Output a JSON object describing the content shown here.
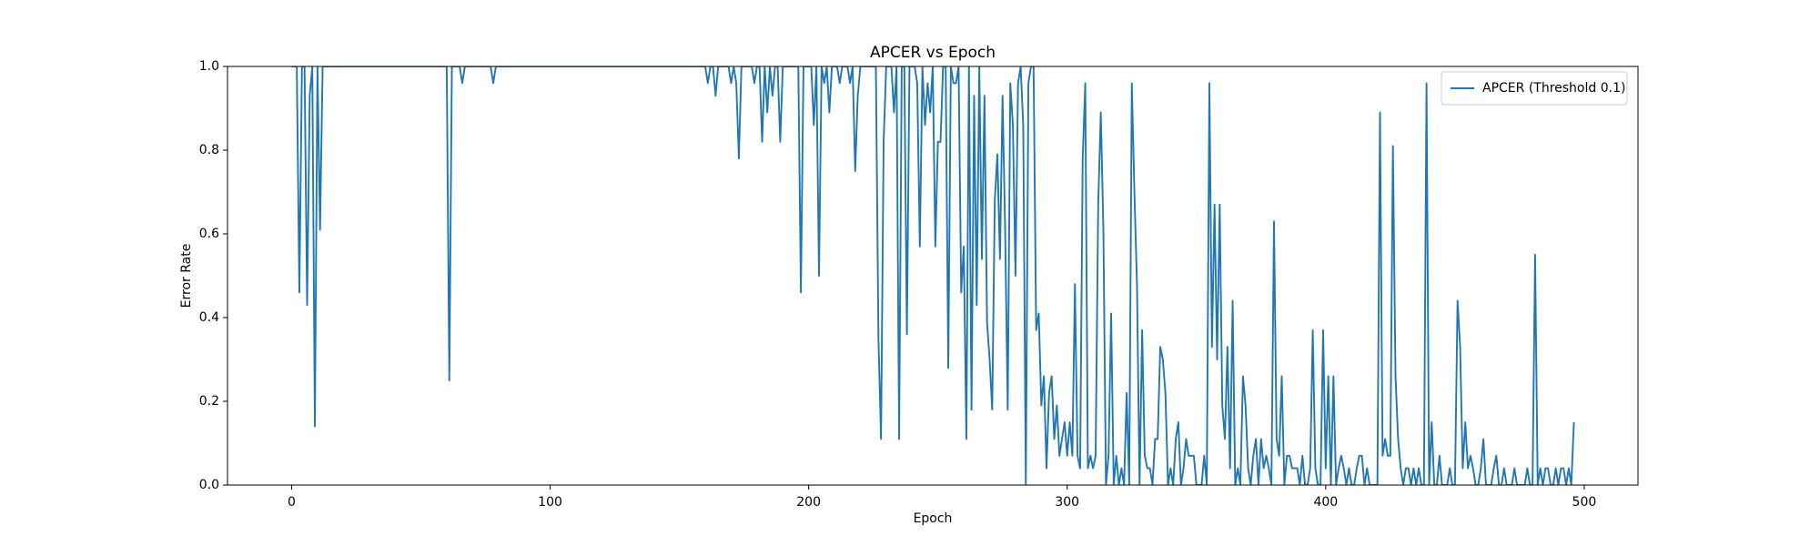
{
  "chart_data": {
    "type": "line",
    "title": "APCER vs Epoch",
    "xlabel": "Epoch",
    "ylabel": "Error Rate",
    "x": [
      0,
      2,
      3,
      4,
      5,
      6,
      7,
      8,
      9,
      10,
      11,
      12,
      60,
      61,
      62,
      65,
      66,
      67,
      77,
      78,
      79,
      160,
      161,
      162,
      163,
      164,
      165,
      169,
      170,
      171,
      172,
      173,
      174,
      178,
      179,
      180,
      181,
      182,
      183,
      184,
      185,
      186,
      187,
      188,
      189,
      190,
      196,
      197,
      198,
      201,
      202,
      203,
      204,
      205,
      206,
      207,
      208,
      209,
      211,
      212,
      213,
      215,
      216,
      217,
      218,
      219,
      220,
      226,
      227,
      228,
      229,
      230,
      231,
      232,
      233,
      234,
      235,
      236,
      237,
      238,
      239,
      240,
      241,
      242,
      243,
      244,
      245,
      246,
      247,
      248,
      249,
      250,
      251,
      252,
      253,
      254,
      255,
      256,
      257,
      258,
      259,
      260,
      261,
      262,
      263,
      264,
      265,
      266,
      267,
      268,
      269,
      270,
      271,
      272,
      273,
      274,
      275,
      276,
      277,
      278,
      279,
      280,
      281,
      282,
      283,
      284,
      285,
      286,
      287,
      288,
      289,
      290,
      291,
      292,
      293,
      294,
      295,
      296,
      297,
      298,
      299,
      300,
      301,
      302,
      303,
      304,
      305,
      306,
      307,
      308,
      309,
      310,
      311,
      312,
      313,
      314,
      315,
      316,
      317,
      318,
      319,
      320,
      321,
      322,
      323,
      324,
      325,
      326,
      327,
      328,
      329,
      330,
      331,
      332,
      333,
      334,
      335,
      336,
      337,
      338,
      339,
      340,
      341,
      342,
      343,
      344,
      345,
      346,
      347,
      348,
      349,
      350,
      351,
      352,
      353,
      354,
      355,
      356,
      357,
      358,
      359,
      360,
      361,
      362,
      363,
      364,
      365,
      366,
      367,
      368,
      369,
      370,
      371,
      372,
      373,
      374,
      375,
      376,
      377,
      378,
      379,
      380,
      381,
      382,
      383,
      384,
      385,
      386,
      387,
      388,
      389,
      390,
      391,
      392,
      393,
      394,
      395,
      396,
      397,
      398,
      399,
      400,
      401,
      402,
      403,
      404,
      405,
      406,
      407,
      408,
      409,
      410,
      411,
      412,
      413,
      414,
      415,
      416,
      417,
      418,
      419,
      420,
      421,
      422,
      423,
      424,
      425,
      426,
      427,
      428,
      429,
      430,
      431,
      432,
      433,
      434,
      435,
      436,
      437,
      438,
      439,
      440,
      441,
      442,
      443,
      444,
      445,
      446,
      447,
      448,
      449,
      450,
      451,
      452,
      453,
      454,
      455,
      456,
      457,
      458,
      459,
      460,
      461,
      462,
      463,
      464,
      465,
      466,
      467,
      468,
      469,
      470,
      471,
      472,
      473,
      474,
      475,
      476,
      477,
      478,
      479,
      480,
      481,
      482,
      483,
      484,
      485,
      486,
      487,
      488,
      489,
      490,
      491,
      492,
      493,
      494,
      495,
      496
    ],
    "series": [
      {
        "name": "APCER (Threshold 0.1)",
        "color": "#1f77b4",
        "values": [
          1,
          1,
          0.46,
          1,
          1,
          0.43,
          0.93,
          1,
          0.14,
          1,
          0.61,
          1,
          1,
          0.25,
          1,
          1,
          0.96,
          1,
          1,
          0.96,
          1,
          1,
          0.96,
          1,
          1,
          0.93,
          1,
          1,
          0.96,
          1,
          0.96,
          0.78,
          1,
          1,
          0.96,
          1,
          1,
          0.82,
          1,
          0.89,
          1,
          0.93,
          1,
          1,
          0.82,
          1,
          1,
          0.46,
          1,
          1,
          0.86,
          1,
          0.5,
          1,
          0.96,
          1,
          0.89,
          1,
          1,
          0.96,
          1,
          1,
          0.96,
          1,
          0.75,
          0.93,
          1,
          1,
          0.35,
          0.11,
          0.82,
          1,
          1,
          1,
          0.89,
          1,
          0.11,
          1,
          1,
          0.36,
          1,
          1,
          1,
          0.96,
          0.57,
          1,
          0.86,
          0.96,
          0.89,
          1,
          0.57,
          0.82,
          0.82,
          1,
          1,
          0.28,
          1,
          0.96,
          0.96,
          1,
          0.46,
          0.57,
          0.11,
          1,
          0.18,
          0.93,
          0.43,
          1,
          0.54,
          0.93,
          0.39,
          0.3,
          0.18,
          0.68,
          0.79,
          0.54,
          0.93,
          0.61,
          0.18,
          0.96,
          0.86,
          0.5,
          0.96,
          1,
          0.86,
          0,
          0.96,
          1,
          1,
          0.37,
          0.41,
          0.19,
          0.26,
          0.04,
          0.22,
          0.26,
          0.11,
          0.19,
          0.07,
          0.11,
          0.15,
          0.07,
          0.15,
          0.07,
          0.48,
          0.07,
          0.04,
          0.78,
          0.96,
          0.04,
          0.07,
          0.04,
          0.07,
          0.67,
          0.89,
          0.61,
          0,
          0.07,
          0.41,
          0,
          0.07,
          0,
          0.04,
          0,
          0.22,
          0,
          0.96,
          0.7,
          0.48,
          0,
          0.37,
          0.07,
          0.04,
          0.04,
          0,
          0.11,
          0.11,
          0.33,
          0.3,
          0.22,
          0,
          0.04,
          0,
          0.11,
          0.15,
          0,
          0.04,
          0.11,
          0.07,
          0.07,
          0.07,
          0,
          0,
          0,
          0.07,
          0,
          0.96,
          0.33,
          0.67,
          0.3,
          0.67,
          0.19,
          0.11,
          0.33,
          0.04,
          0.44,
          0,
          0.04,
          0,
          0.26,
          0.19,
          0.04,
          0,
          0.07,
          0.11,
          0,
          0.11,
          0.04,
          0.07,
          0.04,
          0,
          0.63,
          0.11,
          0.07,
          0.26,
          0,
          0.07,
          0.07,
          0.04,
          0.04,
          0.04,
          0,
          0.07,
          0,
          0,
          0.04,
          0.37,
          0.04,
          0,
          0,
          0.37,
          0.04,
          0.26,
          0,
          0.26,
          0,
          0.04,
          0.07,
          0.04,
          0,
          0.04,
          0,
          0,
          0.04,
          0.07,
          0.07,
          0,
          0.04,
          0,
          0,
          0,
          0,
          0.89,
          0.07,
          0.11,
          0.07,
          0.07,
          0.81,
          0.26,
          0.11,
          0.04,
          0,
          0.04,
          0.04,
          0,
          0.04,
          0,
          0.04,
          0,
          0,
          0.96,
          0,
          0.15,
          0,
          0,
          0.07,
          0,
          0,
          0,
          0.04,
          0,
          0,
          0.44,
          0.33,
          0.04,
          0.15,
          0.04,
          0.07,
          0.04,
          0,
          0,
          0.04,
          0.11,
          0,
          0,
          0,
          0.04,
          0.07,
          0,
          0,
          0.04,
          0,
          0,
          0,
          0.04,
          0,
          0,
          0,
          0,
          0.04,
          0,
          0,
          0.55,
          0,
          0.04,
          0,
          0.04,
          0.04,
          0,
          0,
          0.04,
          0,
          0.04,
          0.04,
          0,
          0.04,
          0,
          0.15
        ]
      }
    ],
    "xlim": [
      -24.8,
      520.8
    ],
    "ylim": [
      0,
      1
    ],
    "xticks": [
      0,
      100,
      200,
      300,
      400,
      500
    ],
    "yticks": [
      {
        "value": 0,
        "label": "0.0"
      },
      0.2,
      0.4,
      0.6,
      0.8,
      {
        "value": 1,
        "label": "1.0"
      }
    ],
    "legend": "upper right",
    "grid": false
  }
}
